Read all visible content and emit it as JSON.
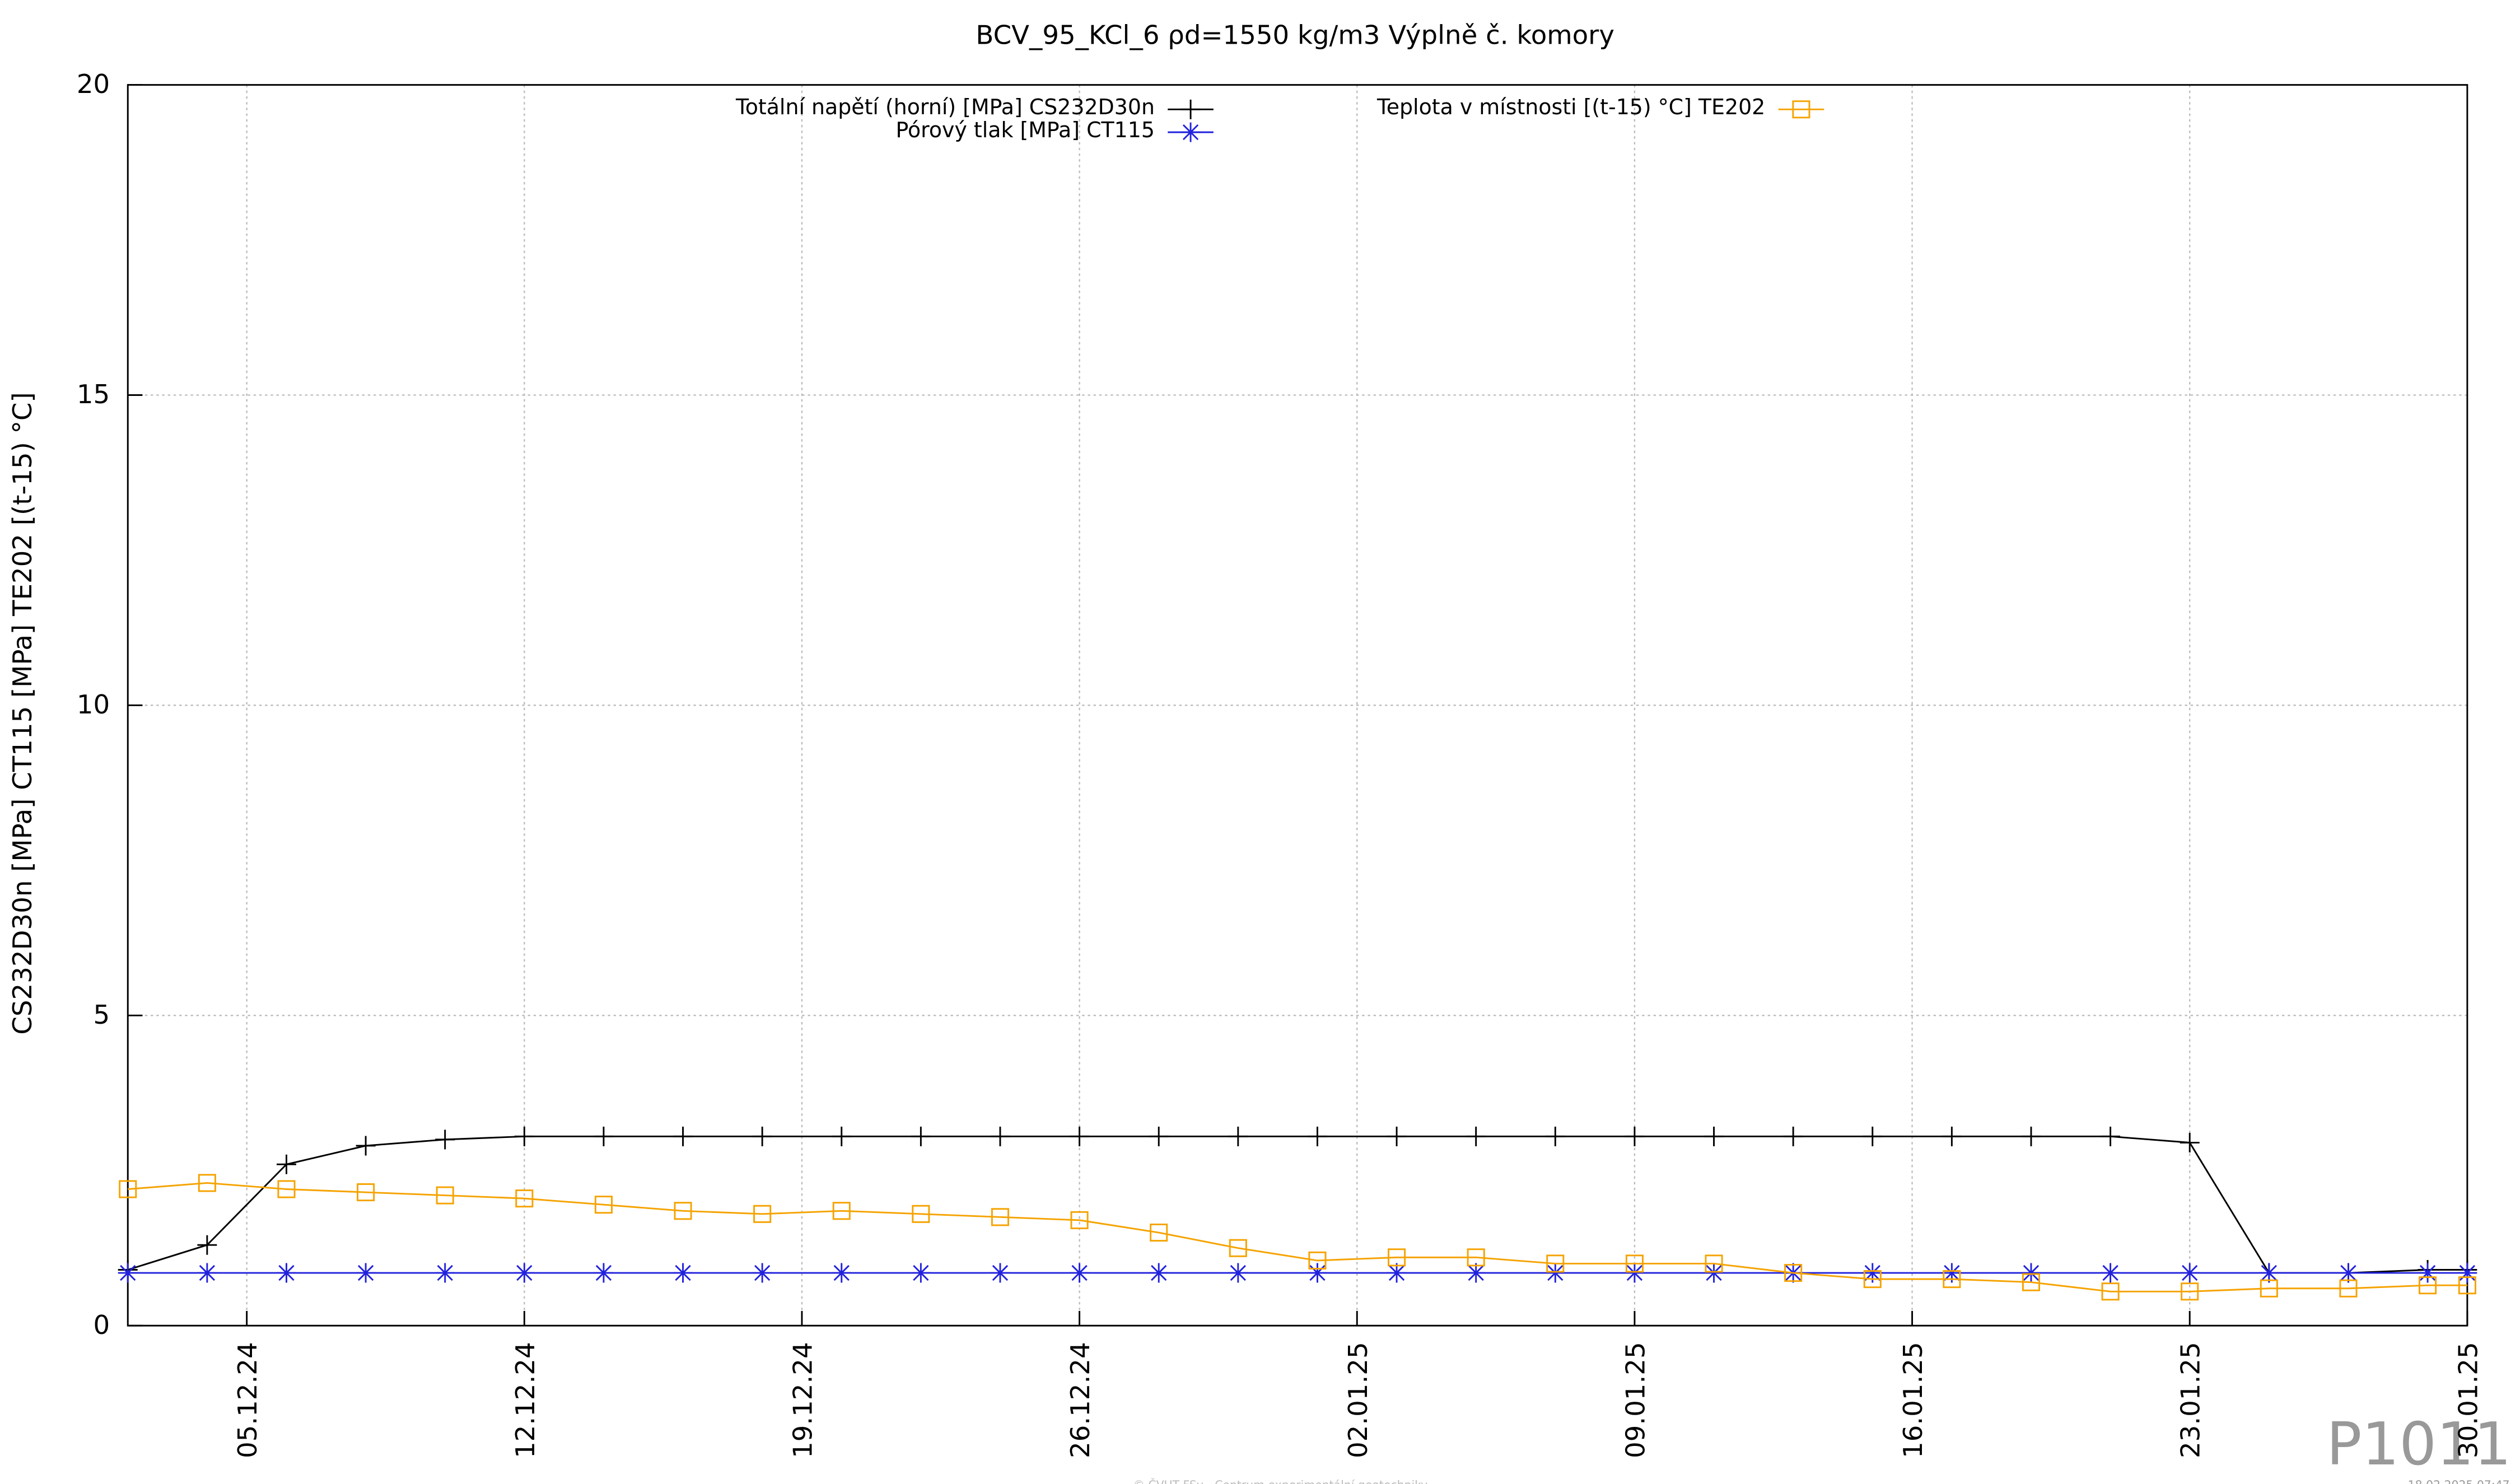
{
  "chart_data": {
    "type": "line",
    "title": "BCV_95_KCl_6 ρd=1550 kg/m3 Výplně č. komory",
    "y_label": "CS232D30n [MPa] CT115 [MPa] TE202 [(t-15) °C]",
    "footer": "© ČVUT FSv - Centrum experimentální geotechniky",
    "timestamp": "18.02.2025 07:47",
    "watermark": "P1011",
    "grid": true,
    "x": [
      "02.12.24",
      "04.12.24",
      "06.12.24",
      "08.12.24",
      "10.12.24",
      "12.12.24",
      "14.12.24",
      "16.12.24",
      "18.12.24",
      "20.12.24",
      "22.12.24",
      "24.12.24",
      "26.12.24",
      "28.12.24",
      "30.12.24",
      "01.01.25",
      "03.01.25",
      "05.01.25",
      "07.01.25",
      "09.01.25",
      "11.01.25",
      "13.01.25",
      "15.01.25",
      "17.01.25",
      "19.01.25",
      "21.01.25",
      "23.01.25",
      "25.01.25",
      "27.01.25",
      "29.01.25",
      "30.01.25"
    ],
    "xlim": [
      "02.12.24",
      "30.01.25"
    ],
    "xticks": [
      "05.12.24",
      "12.12.24",
      "19.12.24",
      "26.12.24",
      "02.01.25",
      "09.01.25",
      "16.01.25",
      "23.01.25",
      "30.01.25"
    ],
    "ylim": [
      0,
      20
    ],
    "yticks": [
      0,
      5,
      10,
      15,
      20
    ],
    "series": [
      {
        "name": "Totální napětí (horní) [MPa] CS232D30n",
        "color": "#000000",
        "marker": "plus",
        "values": [
          0.9,
          1.3,
          2.6,
          2.9,
          3.0,
          3.05,
          3.05,
          3.05,
          3.05,
          3.05,
          3.05,
          3.05,
          3.05,
          3.05,
          3.05,
          3.05,
          3.05,
          3.05,
          3.05,
          3.05,
          3.05,
          3.05,
          3.05,
          3.05,
          3.05,
          3.05,
          2.95,
          0.85,
          0.85,
          0.9,
          0.9
        ]
      },
      {
        "name": "Pórový tlak [MPa] CT115",
        "color": "#2222dd",
        "marker": "star",
        "values": [
          0.85,
          0.85,
          0.85,
          0.85,
          0.85,
          0.85,
          0.85,
          0.85,
          0.85,
          0.85,
          0.85,
          0.85,
          0.85,
          0.85,
          0.85,
          0.85,
          0.85,
          0.85,
          0.85,
          0.85,
          0.85,
          0.85,
          0.85,
          0.85,
          0.85,
          0.85,
          0.85,
          0.85,
          0.85,
          0.85,
          0.85
        ]
      },
      {
        "name": "Teplota v místnosti [(t-15) °C] TE202",
        "color": "#f5a300",
        "marker": "square",
        "values": [
          2.2,
          2.3,
          2.2,
          2.15,
          2.1,
          2.05,
          1.95,
          1.85,
          1.8,
          1.85,
          1.8,
          1.75,
          1.7,
          1.5,
          1.25,
          1.05,
          1.1,
          1.1,
          1.0,
          1.0,
          1.0,
          0.85,
          0.75,
          0.75,
          0.7,
          0.55,
          0.55,
          0.6,
          0.6,
          0.65,
          0.65
        ]
      }
    ]
  }
}
